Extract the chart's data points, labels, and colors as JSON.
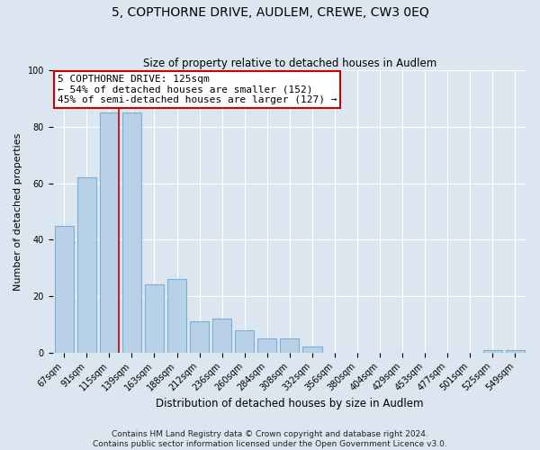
{
  "title": "5, COPTHORNE DRIVE, AUDLEM, CREWE, CW3 0EQ",
  "subtitle": "Size of property relative to detached houses in Audlem",
  "xlabel": "Distribution of detached houses by size in Audlem",
  "ylabel": "Number of detached properties",
  "bar_labels": [
    "67sqm",
    "91sqm",
    "115sqm",
    "139sqm",
    "163sqm",
    "188sqm",
    "212sqm",
    "236sqm",
    "260sqm",
    "284sqm",
    "308sqm",
    "332sqm",
    "356sqm",
    "380sqm",
    "404sqm",
    "429sqm",
    "453sqm",
    "477sqm",
    "501sqm",
    "525sqm",
    "549sqm"
  ],
  "bar_values": [
    45,
    62,
    85,
    85,
    24,
    26,
    11,
    12,
    8,
    5,
    5,
    2,
    0,
    0,
    0,
    0,
    0,
    0,
    0,
    1,
    1
  ],
  "bar_color": "#b8d0e8",
  "bar_edge_color": "#7aafd4",
  "highlight_color": "#cc0000",
  "vline_bar_index": 2,
  "annotation_text": "5 COPTHORNE DRIVE: 125sqm\n← 54% of detached houses are smaller (152)\n45% of semi-detached houses are larger (127) →",
  "annotation_box_facecolor": "#ffffff",
  "annotation_box_edgecolor": "#cc0000",
  "ylim": [
    0,
    100
  ],
  "yticks": [
    0,
    20,
    40,
    60,
    80,
    100
  ],
  "background_color": "#dce6f0",
  "grid_color": "#ffffff",
  "footer_line1": "Contains HM Land Registry data © Crown copyright and database right 2024.",
  "footer_line2": "Contains public sector information licensed under the Open Government Licence v3.0.",
  "title_fontsize": 10,
  "subtitle_fontsize": 8.5,
  "xlabel_fontsize": 8.5,
  "ylabel_fontsize": 8,
  "tick_fontsize": 7,
  "annotation_fontsize": 8,
  "footer_fontsize": 6.5
}
